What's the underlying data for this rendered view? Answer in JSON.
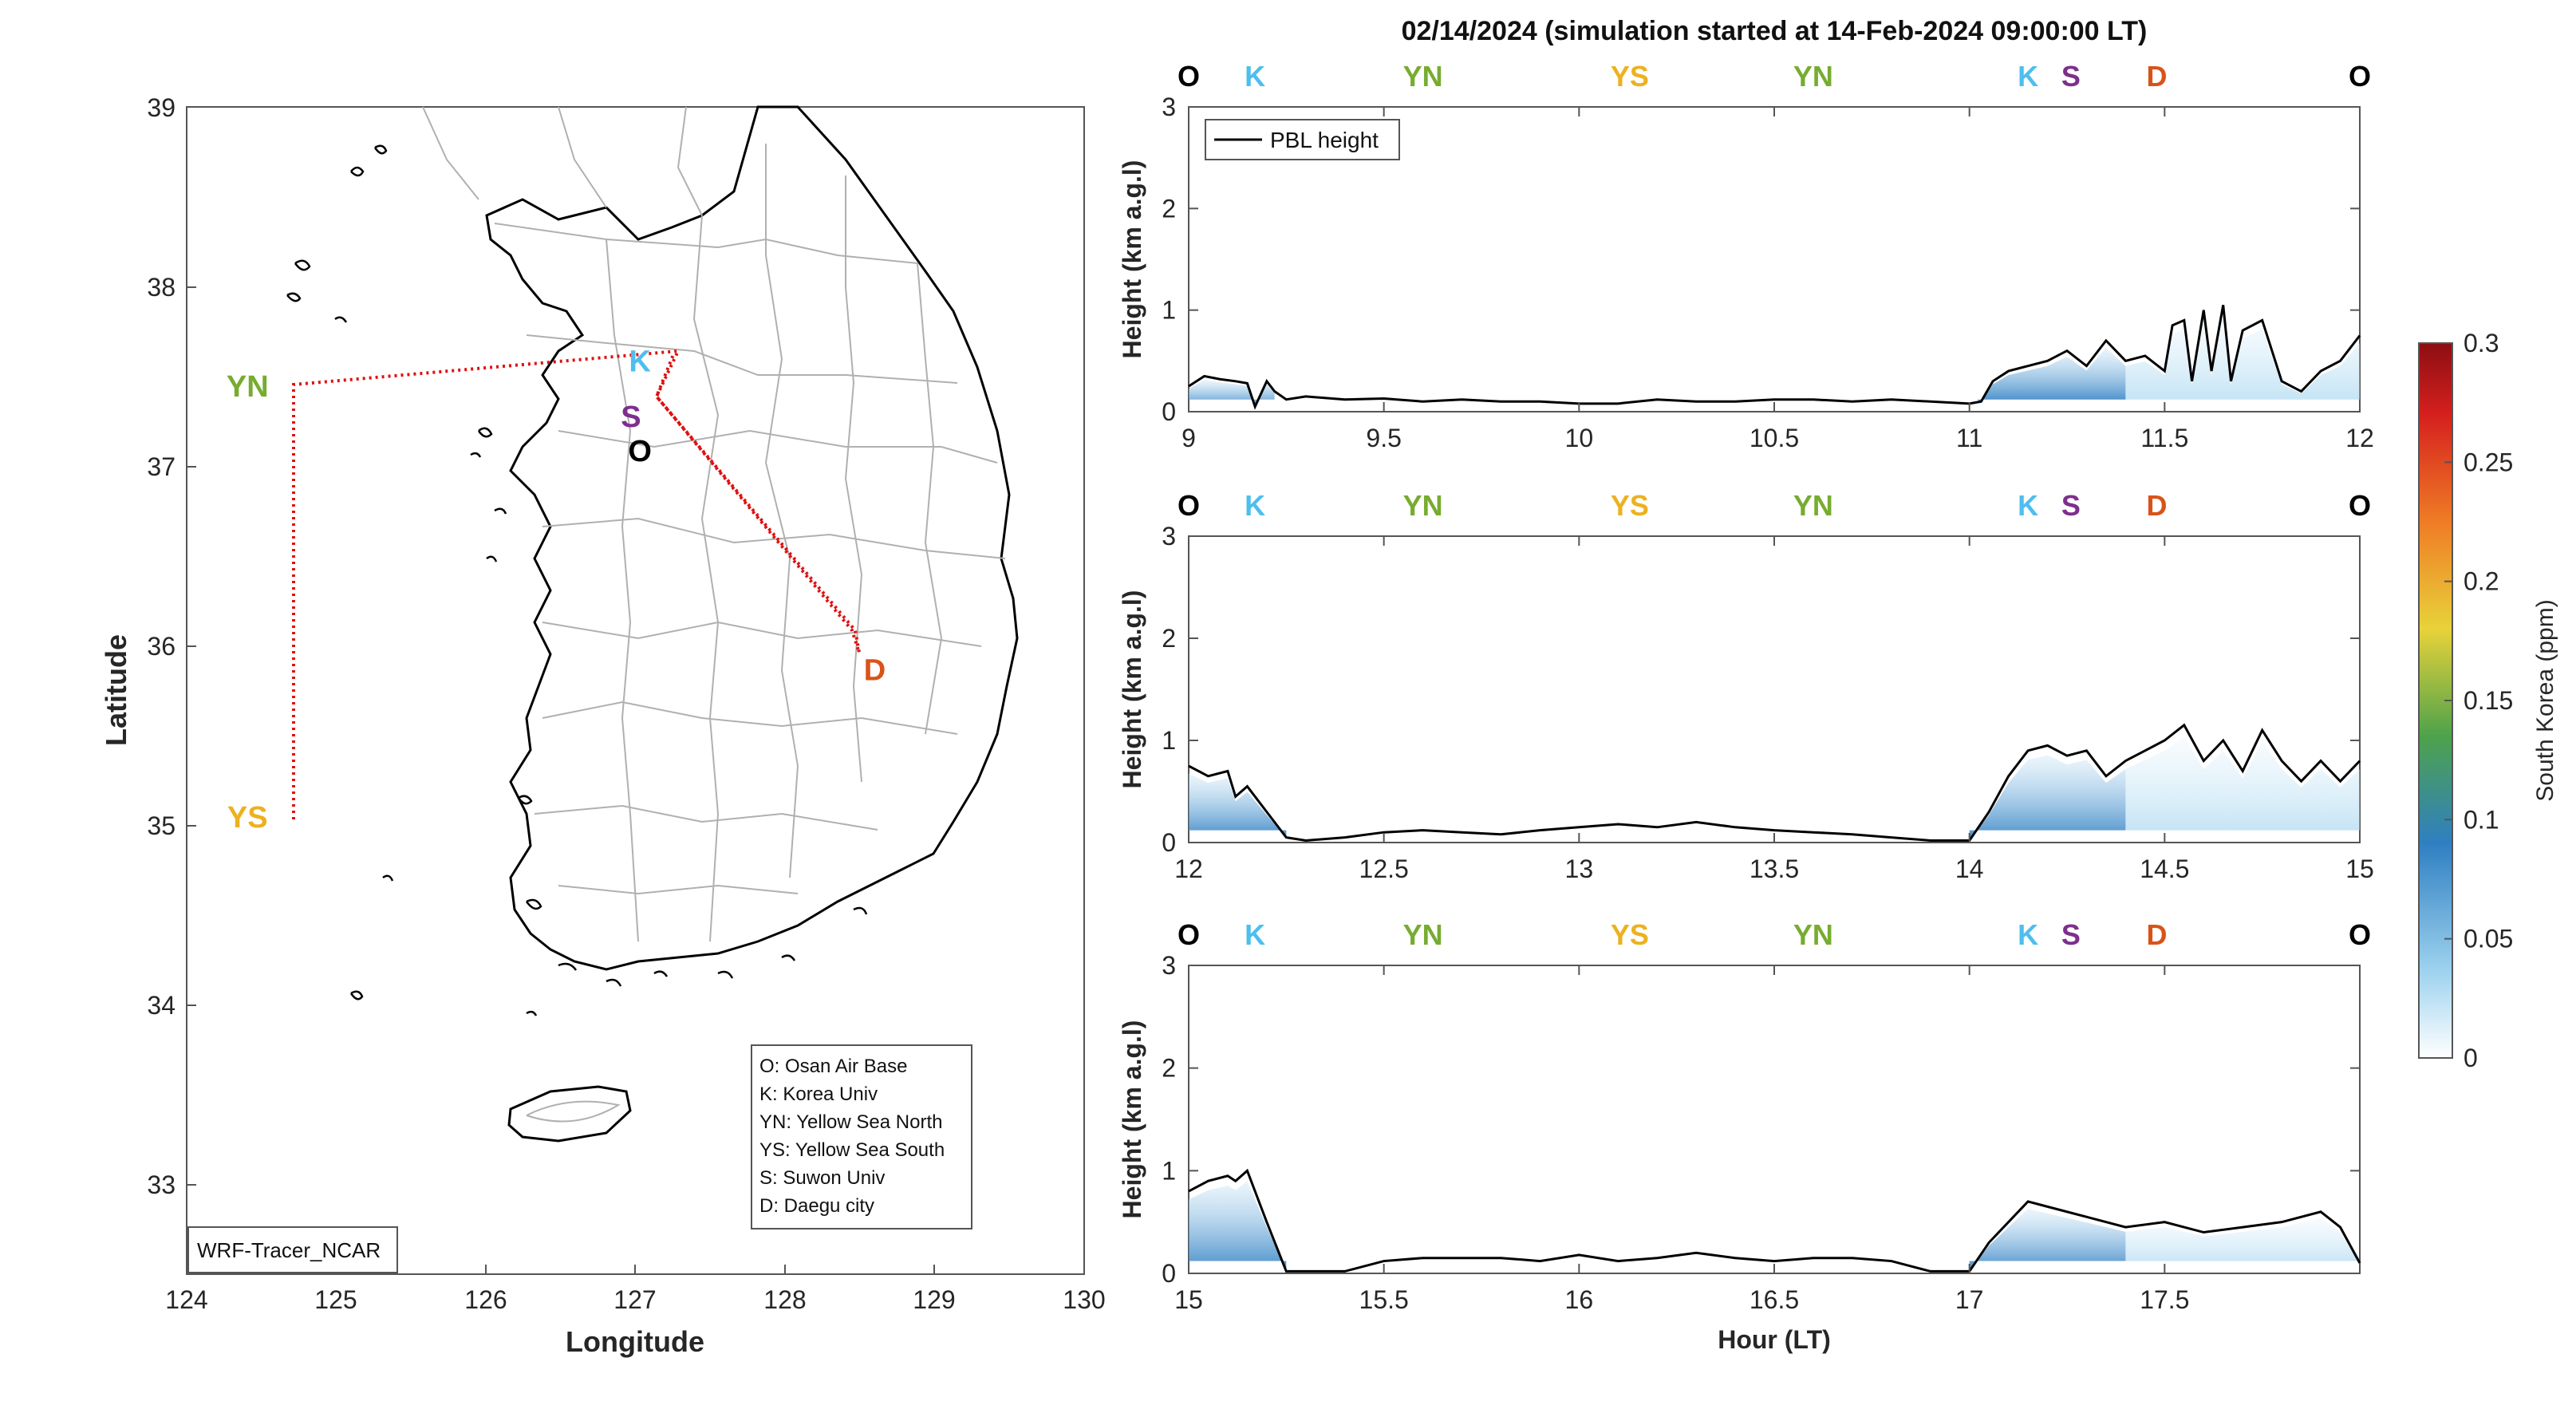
{
  "title": "02/14/2024 (simulation started at 14-Feb-2024 09:00:00 LT)",
  "colors": {
    "O": "#000000",
    "K": "#4DBEEE",
    "YN": "#77AC30",
    "YS": "#EDB120",
    "S": "#7E2F8E",
    "D": "#D95319",
    "track": "#e01010",
    "map_border": "#b0b0b0",
    "coast": "#000000"
  },
  "map": {
    "xlabel": "Longitude",
    "ylabel": "Latitude",
    "xlim": [
      124,
      130
    ],
    "ylim": [
      32.5,
      39
    ],
    "xticks": [
      "124",
      "125",
      "126",
      "127",
      "128",
      "129",
      "130"
    ],
    "yticks": [
      "33",
      "34",
      "35",
      "36",
      "37",
      "38",
      "39"
    ],
    "tag": "WRF-Tracer_NCAR",
    "legend_entries": [
      "O: Osan Air Base",
      "K: Korea Univ",
      "YN: Yellow Sea North",
      "YS: Yellow Sea South",
      "S: Suwon Univ",
      "D: Daegu city"
    ],
    "sites": [
      {
        "label": "O",
        "lon": 127.03,
        "lat": 37.09
      },
      {
        "label": "K",
        "lon": 127.03,
        "lat": 37.59
      },
      {
        "label": "YN",
        "lon": 124.7,
        "lat": 37.45
      },
      {
        "label": "YS",
        "lon": 124.7,
        "lat": 35.05
      },
      {
        "label": "S",
        "lon": 126.97,
        "lat": 37.28
      },
      {
        "label": "D",
        "lon": 128.6,
        "lat": 35.87
      }
    ]
  },
  "chart_data": [
    {
      "type": "line",
      "series": [
        {
          "name": "PBL height"
        }
      ],
      "legend": "top-left",
      "ylabel": "Height (km a.g.l)",
      "xlim": [
        9,
        12
      ],
      "ylim": [
        0,
        3
      ],
      "xticks": [
        "9",
        "9.5",
        "10",
        "10.5",
        "11",
        "11.5",
        "12"
      ],
      "yticks": [
        "0",
        "1",
        "2",
        "3"
      ],
      "site_labels": [
        "O",
        "K",
        "YN",
        "YS",
        "YN",
        "K",
        "S",
        "D",
        "O"
      ],
      "site_times": [
        9.0,
        9.17,
        9.6,
        10.13,
        10.6,
        11.15,
        11.26,
        11.48,
        12.0
      ],
      "pbl": {
        "x": [
          9.0,
          9.04,
          9.08,
          9.12,
          9.15,
          9.17,
          9.2,
          9.22,
          9.25,
          9.3,
          9.4,
          9.5,
          9.6,
          9.7,
          9.8,
          9.9,
          10.0,
          10.1,
          10.2,
          10.3,
          10.4,
          10.5,
          10.6,
          10.7,
          10.8,
          10.9,
          11.0,
          11.03,
          11.06,
          11.1,
          11.15,
          11.2,
          11.25,
          11.3,
          11.35,
          11.4,
          11.45,
          11.5,
          11.52,
          11.55,
          11.57,
          11.6,
          11.62,
          11.65,
          11.67,
          11.7,
          11.75,
          11.8,
          11.85,
          11.9,
          11.95,
          12.0
        ],
        "y": [
          0.25,
          0.35,
          0.32,
          0.3,
          0.28,
          0.05,
          0.3,
          0.2,
          0.12,
          0.15,
          0.12,
          0.13,
          0.1,
          0.12,
          0.1,
          0.1,
          0.08,
          0.08,
          0.12,
          0.1,
          0.1,
          0.12,
          0.12,
          0.1,
          0.12,
          0.1,
          0.08,
          0.1,
          0.3,
          0.4,
          0.45,
          0.5,
          0.6,
          0.45,
          0.7,
          0.5,
          0.55,
          0.4,
          0.85,
          0.9,
          0.3,
          1.0,
          0.4,
          1.05,
          0.3,
          0.8,
          0.9,
          0.3,
          0.2,
          0.4,
          0.5,
          0.75
        ]
      },
      "tracer": [
        {
          "x": [
            9.0,
            9.22
          ],
          "max_ppm": 0.08
        },
        {
          "x": [
            11.02,
            11.4
          ],
          "max_ppm": 0.1
        },
        {
          "x": [
            11.4,
            12.0
          ],
          "max_ppm": 0.03
        }
      ]
    },
    {
      "type": "line",
      "ylabel": "Height (km a.g.l)",
      "xlim": [
        12,
        15
      ],
      "ylim": [
        0,
        3
      ],
      "xticks": [
        "12",
        "12.5",
        "13",
        "13.5",
        "14",
        "14.5",
        "15"
      ],
      "yticks": [
        "0",
        "1",
        "2",
        "3"
      ],
      "site_labels": [
        "O",
        "K",
        "YN",
        "YS",
        "YN",
        "K",
        "S",
        "D",
        "O"
      ],
      "site_times": [
        12.0,
        12.17,
        12.6,
        13.13,
        13.6,
        14.15,
        14.26,
        14.48,
        15.0
      ],
      "pbl": {
        "x": [
          12.0,
          12.05,
          12.1,
          12.12,
          12.15,
          12.2,
          12.25,
          12.3,
          12.4,
          12.5,
          12.6,
          12.7,
          12.8,
          12.9,
          13.0,
          13.1,
          13.2,
          13.3,
          13.4,
          13.5,
          13.6,
          13.7,
          13.8,
          13.9,
          14.0,
          14.05,
          14.1,
          14.15,
          14.2,
          14.25,
          14.3,
          14.35,
          14.4,
          14.45,
          14.5,
          14.55,
          14.6,
          14.65,
          14.7,
          14.75,
          14.8,
          14.85,
          14.9,
          14.95,
          15.0
        ],
        "y": [
          0.75,
          0.65,
          0.7,
          0.45,
          0.55,
          0.3,
          0.05,
          0.02,
          0.05,
          0.1,
          0.12,
          0.1,
          0.08,
          0.12,
          0.15,
          0.18,
          0.15,
          0.2,
          0.15,
          0.12,
          0.1,
          0.08,
          0.05,
          0.02,
          0.02,
          0.3,
          0.65,
          0.9,
          0.95,
          0.85,
          0.9,
          0.65,
          0.8,
          0.9,
          1.0,
          1.15,
          0.8,
          1.0,
          0.7,
          1.1,
          0.8,
          0.6,
          0.8,
          0.6,
          0.8
        ]
      },
      "tracer": [
        {
          "x": [
            12.0,
            12.25
          ],
          "max_ppm": 0.08
        },
        {
          "x": [
            14.0,
            14.4
          ],
          "max_ppm": 0.09
        },
        {
          "x": [
            14.4,
            15.0
          ],
          "max_ppm": 0.03
        }
      ]
    },
    {
      "type": "line",
      "xlabel": "Hour (LT)",
      "ylabel": "Height (km a.g.l)",
      "xlim": [
        15,
        18
      ],
      "ylim": [
        0,
        3
      ],
      "xticks": [
        "15",
        "15.5",
        "16",
        "16.5",
        "17",
        "17.5"
      ],
      "yticks": [
        "0",
        "1",
        "2",
        "3"
      ],
      "site_labels": [
        "O",
        "K",
        "YN",
        "YS",
        "YN",
        "K",
        "S",
        "D",
        "O"
      ],
      "site_times": [
        15.0,
        15.17,
        15.6,
        16.13,
        16.6,
        17.15,
        17.26,
        17.48,
        18.0
      ],
      "pbl": {
        "x": [
          15.0,
          15.05,
          15.1,
          15.12,
          15.15,
          15.2,
          15.25,
          15.3,
          15.4,
          15.5,
          15.6,
          15.7,
          15.8,
          15.9,
          16.0,
          16.1,
          16.2,
          16.3,
          16.4,
          16.5,
          16.6,
          16.7,
          16.8,
          16.9,
          17.0,
          17.05,
          17.1,
          17.15,
          17.2,
          17.3,
          17.4,
          17.5,
          17.6,
          17.7,
          17.8,
          17.9,
          17.95,
          18.0
        ],
        "y": [
          0.8,
          0.9,
          0.95,
          0.9,
          1.0,
          0.5,
          0.02,
          0.02,
          0.02,
          0.12,
          0.15,
          0.15,
          0.15,
          0.12,
          0.18,
          0.12,
          0.15,
          0.2,
          0.15,
          0.12,
          0.15,
          0.15,
          0.12,
          0.02,
          0.02,
          0.3,
          0.5,
          0.7,
          0.65,
          0.55,
          0.45,
          0.5,
          0.4,
          0.45,
          0.5,
          0.6,
          0.45,
          0.1
        ]
      },
      "tracer": [
        {
          "x": [
            15.0,
            15.25
          ],
          "max_ppm": 0.08
        },
        {
          "x": [
            17.0,
            17.4
          ],
          "max_ppm": 0.09
        },
        {
          "x": [
            17.4,
            18.0
          ],
          "max_ppm": 0.03
        }
      ]
    }
  ],
  "colorbar": {
    "label": "South Korea (ppm)",
    "range": [
      0,
      0.3
    ],
    "ticks": [
      "0",
      "0.05",
      "0.1",
      "0.15",
      "0.2",
      "0.25",
      "0.3"
    ]
  }
}
